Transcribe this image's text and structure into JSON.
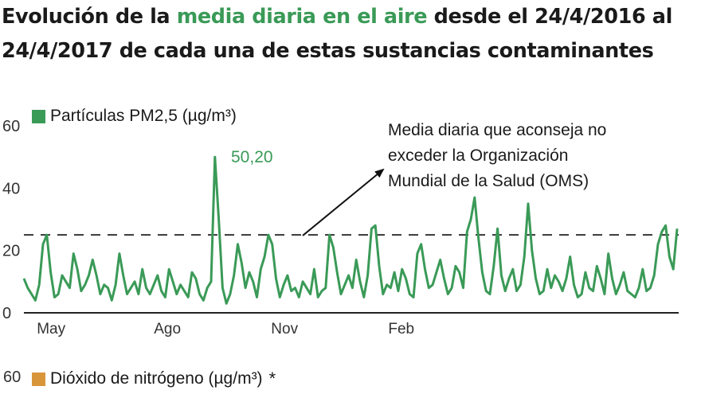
{
  "title": {
    "part1": "Evolución de la ",
    "highlight": "media diaria en el aire",
    "part2": " desde el 24/4/2016 al 24/4/2017 de cada una de estas sustancias contaminantes"
  },
  "colors": {
    "pm25": "#3a9a57",
    "no2": "#d9953a",
    "highlight": "#3a9a57"
  },
  "legend": {
    "pm25": "Partículas PM2,5 (µg/m³)",
    "no2": "Dióxido de nitrógeno (µg/m³)",
    "no2_mark": "*"
  },
  "annotation": {
    "oms_lines": [
      "Media diaria que aconseja no",
      "exceder la Organización",
      "Mundial de la Salud (OMS)"
    ],
    "peak_label": "50,20"
  },
  "second_chart": {
    "y_top_label": "60"
  },
  "chart_data": {
    "type": "line",
    "title": "Evolución de la media diaria en el aire desde el 24/4/2016 al 24/4/2017 de cada una de estas sustancias contaminantes",
    "ylim": [
      0,
      60
    ],
    "yticks": [
      0,
      20,
      40,
      60
    ],
    "xticks": [
      "May",
      "Ago",
      "Nov",
      "Feb"
    ],
    "grid": false,
    "legend_position": "top-left",
    "reference_line": {
      "value": 25
    },
    "peak": {
      "value": 50.2,
      "label": "50,20"
    },
    "series": [
      {
        "name": "Partículas PM2,5 (µg/m³)",
        "x_start": "2016-04-24",
        "step_days": 3,
        "values": [
          11,
          8,
          6,
          4,
          9,
          22,
          25,
          13,
          5,
          6,
          12,
          10,
          8,
          19,
          14,
          7,
          9,
          12,
          17,
          12,
          6,
          9,
          8,
          4,
          9,
          19,
          12,
          6,
          8,
          10,
          6,
          14,
          8,
          6,
          9,
          12,
          7,
          5,
          14,
          10,
          6,
          9,
          7,
          5,
          13,
          11,
          6,
          4,
          8,
          10,
          50,
          30,
          8,
          3,
          6,
          12,
          22,
          16,
          8,
          13,
          10,
          5,
          14,
          18,
          25,
          22,
          11,
          5,
          9,
          12,
          7,
          8,
          5,
          10,
          8,
          6,
          14,
          5,
          7,
          8,
          25,
          21,
          13,
          6,
          9,
          12,
          8,
          17,
          10,
          5,
          12,
          27,
          28,
          15,
          6,
          9,
          8,
          13,
          7,
          14,
          11,
          6,
          5,
          19,
          22,
          14,
          8,
          9,
          13,
          17,
          11,
          6,
          8,
          15,
          13,
          8,
          26,
          30,
          37,
          24,
          13,
          7,
          6,
          15,
          27,
          12,
          7,
          11,
          14,
          7,
          9,
          18,
          35,
          20,
          11,
          6,
          7,
          14,
          8,
          12,
          10,
          7,
          11,
          18,
          9,
          5,
          6,
          13,
          8,
          7,
          15,
          11,
          6,
          19,
          11,
          6,
          9,
          13,
          7,
          6,
          5,
          8,
          14,
          7,
          8,
          12,
          22,
          26,
          28,
          18,
          14,
          27
        ]
      }
    ]
  }
}
